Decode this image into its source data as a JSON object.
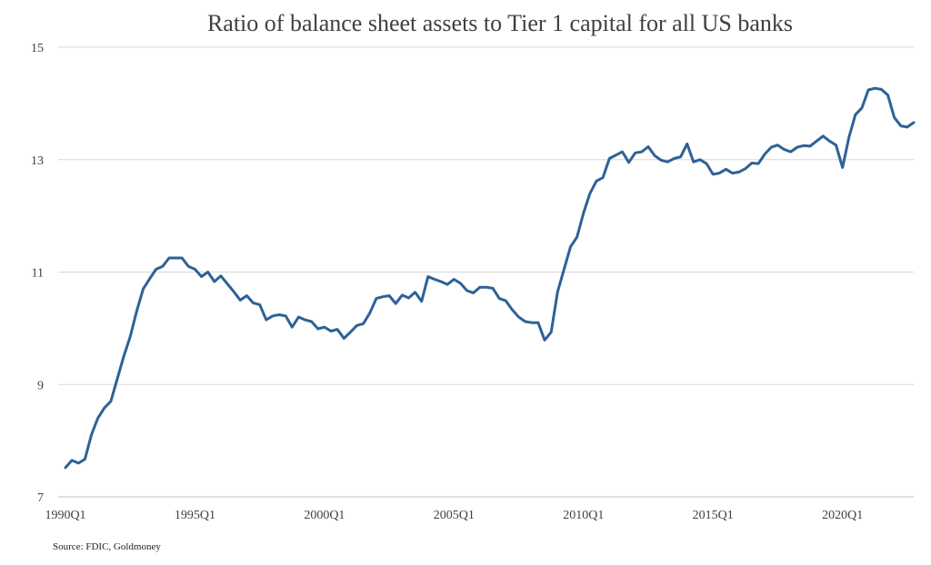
{
  "chart_data": {
    "type": "line",
    "title": "Ratio of balance sheet assets to Tier 1 capital for all US banks",
    "source": "Source: FDIC, Goldmoney",
    "xlabel": "",
    "ylabel": "",
    "ylim": [
      7,
      15
    ],
    "y_ticks": [
      "15",
      "13",
      "11",
      "9",
      "7"
    ],
    "y_tick_values": [
      15,
      13,
      11,
      9,
      7
    ],
    "x_tick_labels": [
      "1990Q1",
      "1995Q1",
      "2000Q1",
      "2005Q1",
      "2010Q1",
      "2015Q1",
      "2020Q1"
    ],
    "x_tick_years": [
      1990,
      1995,
      2000,
      2005,
      2010,
      2015,
      2020
    ],
    "xlim": [
      1990.0,
      2022.75
    ],
    "grid": true,
    "legend": "none",
    "colors": {
      "line": "#2e6296",
      "grid": "#d9d9d9",
      "text": "#404040"
    },
    "series": [
      {
        "x": [
          1990.0,
          1990.25,
          1990.5,
          1990.75,
          1991.0,
          1991.25,
          1991.5,
          1991.75,
          1992.0,
          1992.25,
          1992.5,
          1992.75,
          1993.0,
          1993.25,
          1993.5,
          1993.75,
          1994.0,
          1994.25,
          1994.5,
          1994.75,
          1995.0,
          1995.25,
          1995.5,
          1995.75,
          1996.0,
          1996.25,
          1996.5,
          1996.75,
          1997.0,
          1997.25,
          1997.5,
          1997.75,
          1998.0,
          1998.25,
          1998.5,
          1998.75,
          1999.0,
          1999.25,
          1999.5,
          1999.75,
          2000.0,
          2000.25,
          2000.5,
          2000.75,
          2001.0,
          2001.25,
          2001.5,
          2001.75,
          2002.0,
          2002.25,
          2002.5,
          2002.75,
          2003.0,
          2003.25,
          2003.5,
          2003.75,
          2004.0,
          2004.25,
          2004.5,
          2004.75,
          2005.0,
          2005.25,
          2005.5,
          2005.75,
          2006.0,
          2006.25,
          2006.5,
          2006.75,
          2007.0,
          2007.25,
          2007.5,
          2007.75,
          2008.0,
          2008.25,
          2008.5,
          2008.75,
          2009.0,
          2009.25,
          2009.5,
          2009.75,
          2010.0,
          2010.25,
          2010.5,
          2010.75,
          2011.0,
          2011.25,
          2011.5,
          2011.75,
          2012.0,
          2012.25,
          2012.5,
          2012.75,
          2013.0,
          2013.25,
          2013.5,
          2013.75,
          2014.0,
          2014.25,
          2014.5,
          2014.75,
          2015.0,
          2015.25,
          2015.5,
          2015.75,
          2016.0,
          2016.25,
          2016.5,
          2016.75,
          2017.0,
          2017.25,
          2017.5,
          2017.75,
          2018.0,
          2018.25,
          2018.5,
          2018.75,
          2019.0,
          2019.25,
          2019.5,
          2019.75,
          2020.0,
          2020.25,
          2020.5,
          2020.75,
          2021.0,
          2021.25,
          2021.5,
          2021.75,
          2022.0,
          2022.25,
          2022.5,
          2022.75
        ],
        "values": [
          7.52,
          7.65,
          7.6,
          7.67,
          8.1,
          8.4,
          8.58,
          8.7,
          9.1,
          9.5,
          9.85,
          10.3,
          10.7,
          10.88,
          11.05,
          11.1,
          11.25,
          11.25,
          11.25,
          11.1,
          11.05,
          10.92,
          11.0,
          10.83,
          10.93,
          10.79,
          10.65,
          10.5,
          10.58,
          10.45,
          10.42,
          10.15,
          10.22,
          10.24,
          10.22,
          10.02,
          10.2,
          10.15,
          10.12,
          9.99,
          10.02,
          9.95,
          9.98,
          9.82,
          9.93,
          10.05,
          10.08,
          10.27,
          10.53,
          10.56,
          10.58,
          10.44,
          10.59,
          10.54,
          10.64,
          10.48,
          10.92,
          10.87,
          10.83,
          10.78,
          10.87,
          10.8,
          10.67,
          10.63,
          10.73,
          10.73,
          10.71,
          10.53,
          10.49,
          10.33,
          10.2,
          10.12,
          10.1,
          10.1,
          9.79,
          9.93,
          10.65,
          11.05,
          11.45,
          11.62,
          12.05,
          12.4,
          12.62,
          12.68,
          13.02,
          13.08,
          13.14,
          12.95,
          13.12,
          13.14,
          13.23,
          13.07,
          12.99,
          12.96,
          13.02,
          13.05,
          13.28,
          12.96,
          13.0,
          12.93,
          12.74,
          12.76,
          12.83,
          12.76,
          12.78,
          12.84,
          12.94,
          12.93,
          13.1,
          13.22,
          13.26,
          13.18,
          13.14,
          13.22,
          13.25,
          13.24,
          13.33,
          13.42,
          13.33,
          13.26,
          12.86,
          13.4,
          13.8,
          13.92,
          14.24,
          14.27,
          14.25,
          14.15,
          13.75,
          13.6,
          13.58,
          13.66
        ]
      }
    ]
  }
}
